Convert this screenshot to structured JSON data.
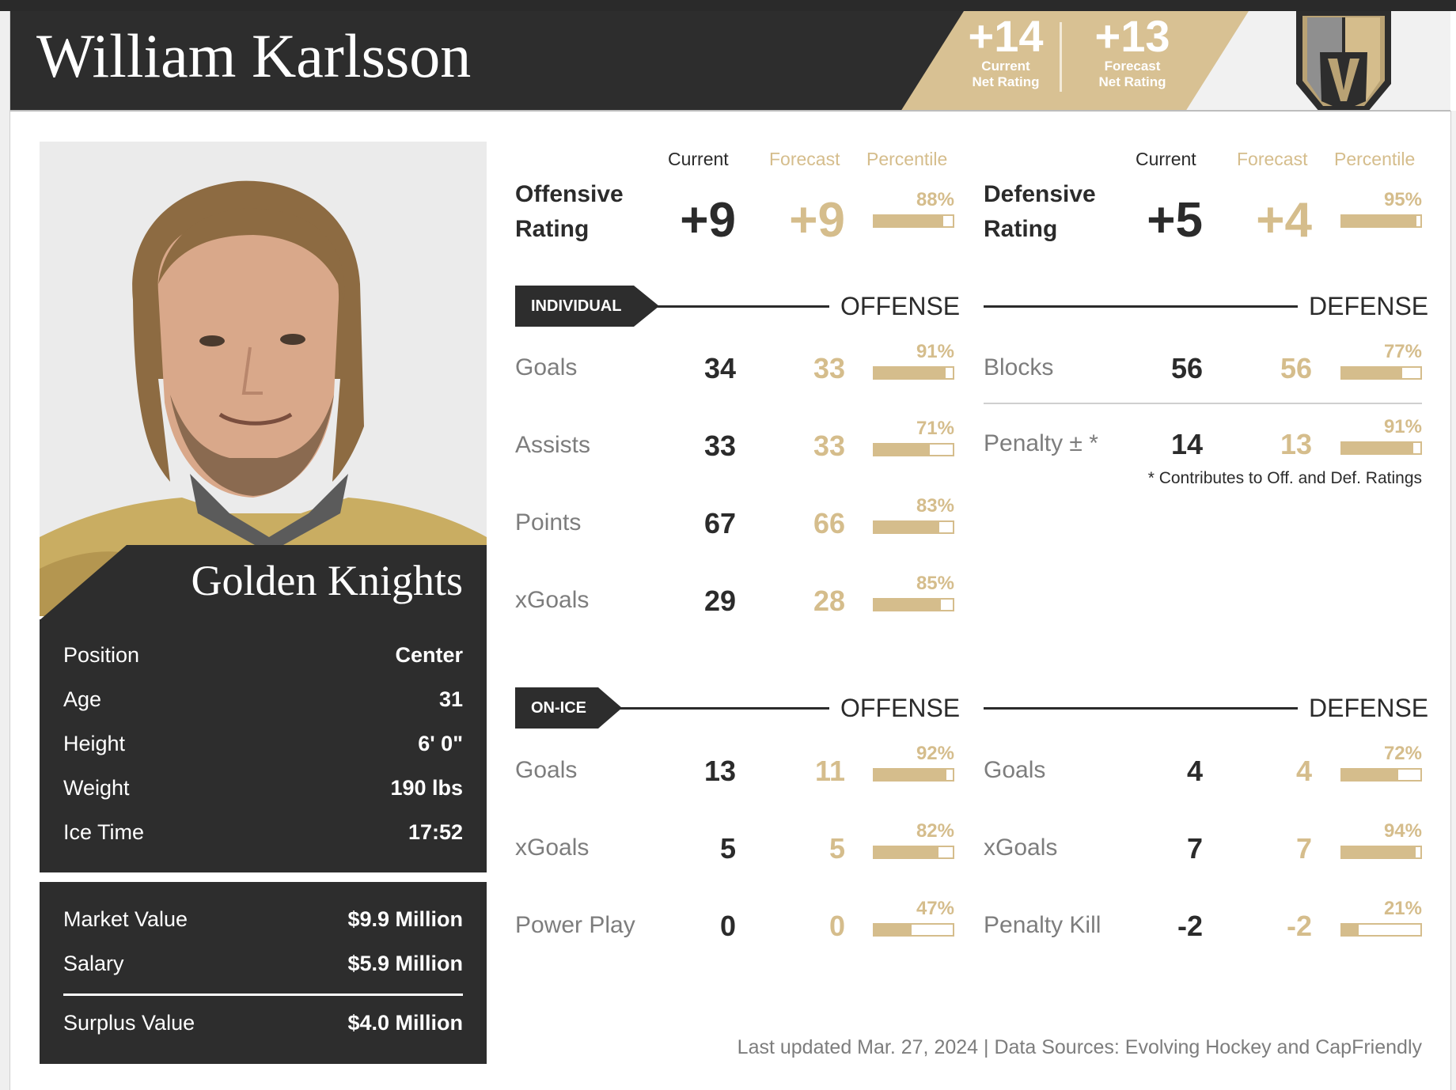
{
  "header": {
    "player_name": "William Karlsson",
    "current_net_rating": {
      "value": "+14",
      "label_line1": "Current",
      "label_line2": "Net Rating"
    },
    "forecast_net_rating": {
      "value": "+13",
      "label_line1": "Forecast",
      "label_line2": "Net Rating"
    },
    "logo_icon": "golden-knights-helmet-icon"
  },
  "profile": {
    "photo_icon": "player-headshot",
    "team": "Golden Knights",
    "bio": [
      {
        "label": "Position",
        "value": "Center"
      },
      {
        "label": "Age",
        "value": "31"
      },
      {
        "label": "Height",
        "value": "6' 0\""
      },
      {
        "label": "Weight",
        "value": "190 lbs"
      },
      {
        "label": "Ice Time",
        "value": "17:52"
      }
    ],
    "money": [
      {
        "label": "Market Value",
        "value": "$9.9 Million"
      },
      {
        "label": "Salary",
        "value": "$5.9 Million"
      },
      {
        "label": "Surplus Value",
        "value": "$4.0 Million"
      }
    ]
  },
  "columns": {
    "current": "Current",
    "forecast": "Forecast",
    "percentile": "Percentile"
  },
  "ratings": {
    "offensive": {
      "line1": "Offensive",
      "line2": "Rating",
      "current": "+9",
      "forecast": "+9",
      "percentile": "88%",
      "pct_value": 88
    },
    "defensive": {
      "line1": "Defensive",
      "line2": "Rating",
      "current": "+5",
      "forecast": "+4",
      "percentile": "95%",
      "pct_value": 95
    }
  },
  "individual": {
    "tag": "INDIVIDUAL",
    "offense_title": "OFFENSE",
    "defense_title": "DEFENSE",
    "offense": [
      {
        "label": "Goals",
        "current": "34",
        "forecast": "33",
        "percentile": "91%",
        "pct_value": 91
      },
      {
        "label": "Assists",
        "current": "33",
        "forecast": "33",
        "percentile": "71%",
        "pct_value": 71
      },
      {
        "label": "Points",
        "current": "67",
        "forecast": "66",
        "percentile": "83%",
        "pct_value": 83
      },
      {
        "label": "xGoals",
        "current": "29",
        "forecast": "28",
        "percentile": "85%",
        "pct_value": 85
      }
    ],
    "defense": [
      {
        "label": "Blocks",
        "current": "56",
        "forecast": "56",
        "percentile": "77%",
        "pct_value": 77
      },
      {
        "label": "Penalty ± *",
        "current": "14",
        "forecast": "13",
        "percentile": "91%",
        "pct_value": 91
      }
    ],
    "footnote": "* Contributes to Off. and Def. Ratings"
  },
  "onice": {
    "tag": "ON-ICE",
    "offense_title": "OFFENSE",
    "defense_title": "DEFENSE",
    "offense": [
      {
        "label": "Goals",
        "current": "13",
        "forecast": "11",
        "percentile": "92%",
        "pct_value": 92
      },
      {
        "label": "xGoals",
        "current": "5",
        "forecast": "5",
        "percentile": "82%",
        "pct_value": 82
      },
      {
        "label": "Power Play",
        "current": "0",
        "forecast": "0",
        "percentile": "47%",
        "pct_value": 47
      }
    ],
    "defense": [
      {
        "label": "Goals",
        "current": "4",
        "forecast": "4",
        "percentile": "72%",
        "pct_value": 72
      },
      {
        "label": "xGoals",
        "current": "7",
        "forecast": "7",
        "percentile": "94%",
        "pct_value": 94
      },
      {
        "label": "Penalty Kill",
        "current": "-2",
        "forecast": "-2",
        "percentile": "21%",
        "pct_value": 21
      }
    ]
  },
  "footer": {
    "updated": "Last updated Mar. 27, 2024 | Data Sources: Evolving Hockey and CapFriendly"
  },
  "colors": {
    "dark": "#2d2d2d",
    "gold": "#d5bd8c",
    "gray_text": "#7d7d7d"
  }
}
